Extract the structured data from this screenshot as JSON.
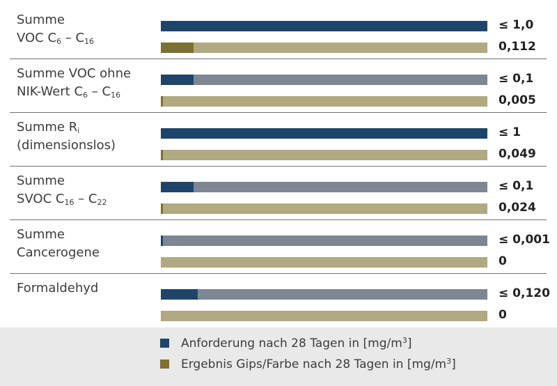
{
  "colors": {
    "requirement": "#1f4469",
    "requirement_track": "#7d8794",
    "result": "#7e7031",
    "result_track": "#b0a982"
  },
  "chart_data": {
    "type": "bar",
    "orientation": "horizontal",
    "unit_label_text": "mg/m",
    "categories": [
      {
        "label_lines": [
          [
            "Summe"
          ],
          [
            "VOC C",
            "6",
            " – C",
            "16"
          ]
        ]
      },
      {
        "label_lines": [
          [
            "Summe VOC ohne"
          ],
          [
            "NIK-Wert C",
            "6",
            " – C",
            "16"
          ]
        ]
      },
      {
        "label_lines": [
          [
            "Summe R",
            "i"
          ],
          [
            "(dimensionslos)"
          ]
        ]
      },
      {
        "label_lines": [
          [
            "Summe"
          ],
          [
            "SVOC C",
            "16",
            " – C",
            "22"
          ]
        ]
      },
      {
        "label_lines": [
          [
            "Summe"
          ],
          [
            "Cancerogene"
          ]
        ]
      },
      {
        "label_lines": [
          [
            "Formaldehyd"
          ]
        ]
      }
    ],
    "series": [
      {
        "name": "Anforderung nach 28 Tagen in [mg/m",
        "name_sup": "3",
        "name_suffix": "]",
        "value_labels": [
          "≤ 1,0",
          "≤ 0,1",
          "≤ 1",
          "≤ 0,1",
          "≤ 0,001",
          "≤ 0,120"
        ],
        "fill_fraction": [
          1.0,
          0.1,
          1.0,
          0.1,
          0.006,
          0.112
        ]
      },
      {
        "name": "Ergebnis Gips/Farbe nach 28 Tagen in [mg/m",
        "name_sup": "3",
        "name_suffix": "]",
        "value_labels": [
          "0,112",
          "0,005",
          "0,049",
          "0,024",
          "0",
          "0"
        ],
        "fill_fraction": [
          0.1,
          0.005,
          0.005,
          0.005,
          0,
          0
        ]
      }
    ],
    "legend_position": "bottom"
  }
}
